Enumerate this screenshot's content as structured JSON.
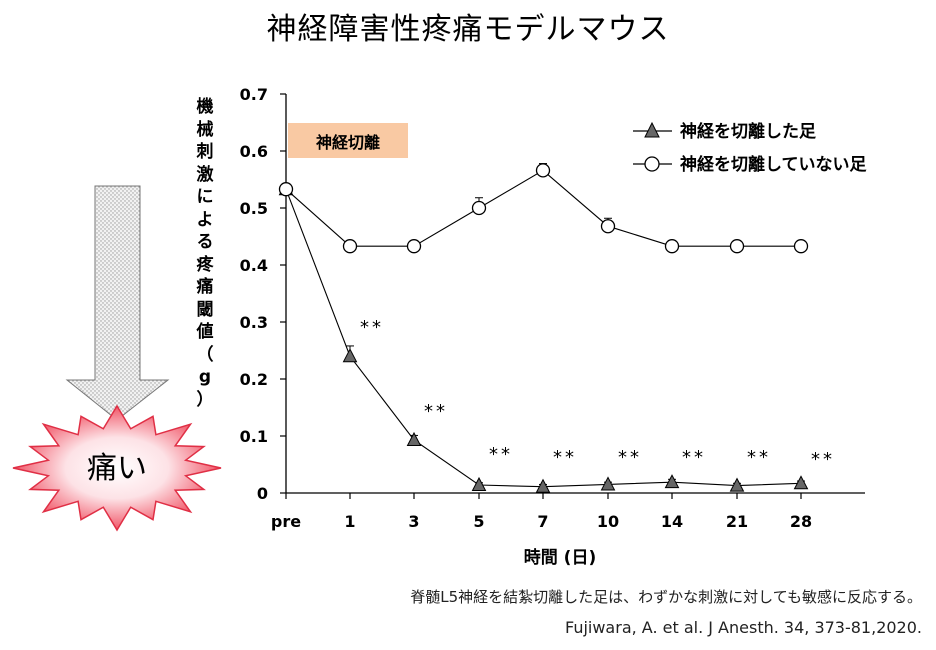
{
  "title": "神経障害性疼痛モデルマウス",
  "chart_data": {
    "type": "line",
    "categories": [
      "pre",
      "1",
      "3",
      "5",
      "7",
      "10",
      "14",
      "21",
      "28"
    ],
    "ylabel": "機械刺激による疼痛閾値（g）",
    "xlabel": "時間 (日)",
    "ylim": [
      0,
      0.7
    ],
    "yticks": [
      "0",
      "0.1",
      "0.2",
      "0.3",
      "0.4",
      "0.5",
      "0.6",
      "0.7"
    ],
    "series": [
      {
        "name": "神経を切離した足",
        "marker": "triangle",
        "values": [
          0.533,
          0.24,
          0.093,
          0.014,
          0.011,
          0.015,
          0.019,
          0.013,
          0.017
        ],
        "errors": [
          0.006,
          0.018,
          0.008,
          0.004,
          0.004,
          0.004,
          0.005,
          0.004,
          0.004
        ]
      },
      {
        "name": "神経を切離していない足",
        "marker": "circle",
        "values": [
          0.533,
          0.433,
          0.433,
          0.5,
          0.566,
          0.468,
          0.433,
          0.433,
          0.433
        ],
        "errors": [
          0.006,
          0.006,
          0.006,
          0.018,
          0.012,
          0.014,
          0.006,
          0.006,
          0.006
        ]
      }
    ],
    "significance": [
      "",
      "**",
      "**",
      "**",
      "**",
      "**",
      "**",
      "**",
      "**"
    ],
    "annotation": "神経切離",
    "grid": false,
    "legend": "top-right"
  },
  "pain_label": "痛い",
  "caption_line1": "脊髄L5神経を結紮切離した足は、わずかな刺激に対しても敏感に反応する。",
  "caption_line2": "Fujiwara, A. et al. J Anesth. 34, 373-81,2020.",
  "colors": {
    "triangle_fill": "#666666",
    "annotation_bg": "#f9c9a3",
    "burst_fill": "#f04a5a",
    "arrow_fill": "#d8d8d8"
  }
}
